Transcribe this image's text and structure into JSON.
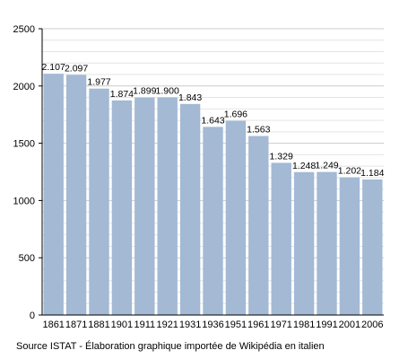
{
  "chart_data": {
    "type": "bar",
    "categories": [
      "1861",
      "1871",
      "1881",
      "1901",
      "1911",
      "1921",
      "1931",
      "1936",
      "1951",
      "1961",
      "1971",
      "1981",
      "1991",
      "2001",
      "2006"
    ],
    "values": [
      2107,
      2097,
      1977,
      1874,
      1899,
      1900,
      1843,
      1643,
      1696,
      1563,
      1329,
      1248,
      1249,
      1202,
      1184
    ],
    "data_labels": [
      "2.107",
      "2.097",
      "1.977",
      "1.874",
      "1.899",
      "1.900",
      "1.843",
      "1.643",
      "1.696",
      "1.563",
      "1.329",
      "1.248",
      "1.249",
      "1.202",
      "1.184"
    ],
    "ylim": [
      0,
      2500
    ],
    "yticks": [
      0,
      500,
      1000,
      1500,
      2000,
      2500
    ],
    "ytick_labels": [
      "0",
      "500",
      "1000",
      "1500",
      "2000",
      "2500"
    ],
    "grid": true,
    "bar_color": "#a3b9d4",
    "grid_color": "#cccccc",
    "title": "",
    "xlabel": "",
    "ylabel": ""
  },
  "footer": {
    "source": "Source ISTAT - Élaboration graphique importée de Wikipédia en italien"
  }
}
